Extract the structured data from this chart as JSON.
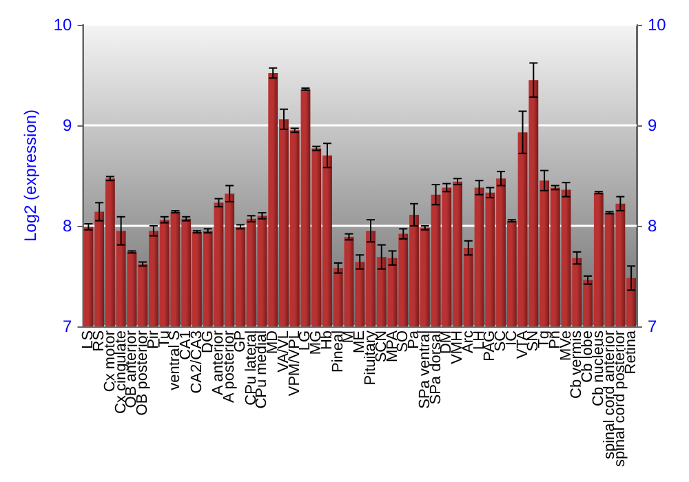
{
  "chart_data": {
    "type": "bar",
    "ylabel": "Log2 (expression)",
    "categories": [
      "LS",
      "RS",
      "Cx motor",
      "Cx cingulate",
      "OB anterior",
      "OB posterior",
      "Pir",
      "Tu",
      "ventral S",
      "CA1",
      "CA2/CA3",
      "DG",
      "A anterior",
      "A posterior",
      "GP",
      "CPu lateral",
      "CPu medial",
      "MD",
      "VA/VL",
      "VPM/VPL",
      "LG",
      "MG",
      "Hb",
      "Pineal",
      "M",
      "ME",
      "Pituitary",
      "SCN",
      "MPA",
      "SO",
      "Pa",
      "SPa ventral",
      "SPa dorsal",
      "DM",
      "VMH",
      "Arc",
      "LH",
      "PAG",
      "SC",
      "IC",
      "VTA",
      "SN",
      "Tg",
      "Pn",
      "MVe",
      "Cb vermis",
      "Cb lobe",
      "Cb nucleus",
      "spinal cord anterior",
      "spinal cord posterior",
      "Retina"
    ],
    "values": [
      7.99,
      8.14,
      8.47,
      7.95,
      7.74,
      7.62,
      7.95,
      8.06,
      8.14,
      8.07,
      7.94,
      7.95,
      8.23,
      8.32,
      7.99,
      8.07,
      8.1,
      9.52,
      9.06,
      8.95,
      9.36,
      8.77,
      8.7,
      7.58,
      7.89,
      7.64,
      7.95,
      7.69,
      7.68,
      7.92,
      8.11,
      7.98,
      8.31,
      8.38,
      8.44,
      7.78,
      8.38,
      8.33,
      8.47,
      8.05,
      8.93,
      9.45,
      8.45,
      8.38,
      8.36,
      7.68,
      7.46,
      8.33,
      8.13,
      8.22,
      7.48
    ],
    "errors": [
      0.03,
      0.09,
      0.02,
      0.14,
      0.01,
      0.02,
      0.05,
      0.03,
      0.01,
      0.02,
      0.01,
      0.02,
      0.04,
      0.08,
      0.02,
      0.03,
      0.03,
      0.05,
      0.1,
      0.02,
      0.01,
      0.02,
      0.12,
      0.05,
      0.03,
      0.07,
      0.11,
      0.12,
      0.07,
      0.05,
      0.11,
      0.02,
      0.1,
      0.04,
      0.03,
      0.07,
      0.07,
      0.05,
      0.07,
      0.01,
      0.21,
      0.17,
      0.1,
      0.02,
      0.07,
      0.06,
      0.04,
      0.01,
      0.01,
      0.07,
      0.12
    ],
    "color": "#b83232",
    "ylim": [
      7,
      10
    ],
    "yticks": [
      7,
      8,
      9,
      10
    ],
    "y2lim": [
      7,
      10
    ],
    "y2ticks": [
      7,
      8,
      9,
      10
    ],
    "grid": "y"
  }
}
